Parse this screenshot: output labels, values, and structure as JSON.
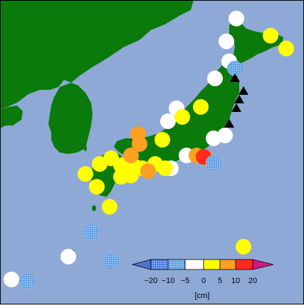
{
  "map": {
    "colors": {
      "sea": "#8fa9d6",
      "land": "#0a7a0a",
      "border": "#000000"
    },
    "colorbar": {
      "tick_labels": [
        "−20",
        "−10",
        "−5",
        "0",
        "5",
        "10",
        "20"
      ],
      "unit_label": "[cm]",
      "bins": [
        {
          "range": "below -20",
          "color": "#2b53c8",
          "pattern": "cross-hatch"
        },
        {
          "range": "-20 to -10",
          "color": "#4a78e0",
          "pattern": "dots"
        },
        {
          "range": "-10 to -5",
          "color": "#86c0f0",
          "pattern": "dots"
        },
        {
          "range": "-5 to 0",
          "color": "#ffffff",
          "pattern": "solid"
        },
        {
          "range": "0 to 5",
          "color": "#ffff00",
          "pattern": "solid"
        },
        {
          "range": "5 to 10",
          "color": "#ffa020",
          "pattern": "solid"
        },
        {
          "range": "10 to 20",
          "color": "#ff2a1a",
          "pattern": "solid"
        },
        {
          "range": "above 20",
          "color": "#d01880",
          "pattern": "solid"
        }
      ]
    },
    "stations": [
      {
        "category": "-5 to 0"
      },
      {
        "category": "-5 to 0"
      },
      {
        "category": "-5 to 0"
      },
      {
        "category": "-5 to 0"
      },
      {
        "category": "-5 to 0"
      },
      {
        "category": "-5 to 0"
      },
      {
        "category": "-5 to 0"
      },
      {
        "category": "-5 to 0"
      },
      {
        "category": "-5 to 0"
      },
      {
        "category": "-5 to 0"
      },
      {
        "category": "-5 to 0"
      },
      {
        "category": "-5 to 0"
      },
      {
        "category": "0 to 5"
      },
      {
        "category": "0 to 5"
      },
      {
        "category": "0 to 5"
      },
      {
        "category": "0 to 5"
      },
      {
        "category": "0 to 5"
      },
      {
        "category": "0 to 5"
      },
      {
        "category": "0 to 5"
      },
      {
        "category": "0 to 5"
      },
      {
        "category": "0 to 5"
      },
      {
        "category": "0 to 5"
      },
      {
        "category": "0 to 5"
      },
      {
        "category": "0 to 5"
      },
      {
        "category": "0 to 5"
      },
      {
        "category": "0 to 5"
      },
      {
        "category": "0 to 5"
      },
      {
        "category": "0 to 5"
      },
      {
        "category": "0 to 5"
      },
      {
        "category": "0 to 5"
      },
      {
        "category": "5 to 10"
      },
      {
        "category": "5 to 10"
      },
      {
        "category": "5 to 10"
      },
      {
        "category": "5 to 10"
      },
      {
        "category": "5 to 10"
      },
      {
        "category": "5 to 10"
      },
      {
        "category": "10 to 20"
      },
      {
        "category": "-10 to -5"
      },
      {
        "category": "-10 to -5"
      },
      {
        "category": "-10 to -5"
      },
      {
        "category": "-10 to -5"
      },
      {
        "category": "-10 to -5"
      }
    ],
    "triangle_markers": 5
  }
}
